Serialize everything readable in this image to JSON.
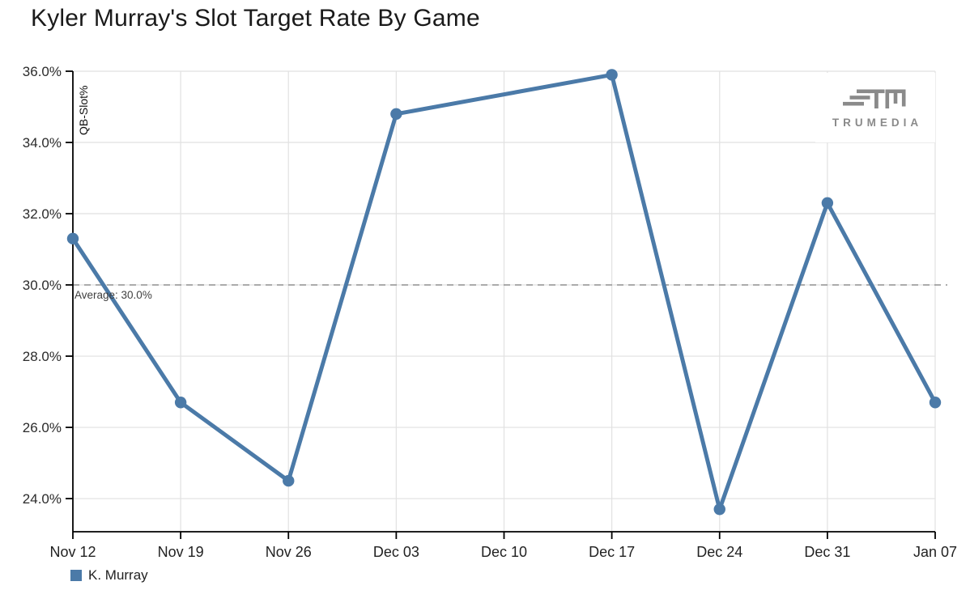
{
  "page": {
    "title": "Kyler Murray's Slot Target Rate By Game"
  },
  "logo": {
    "name": "TRUMEDIA",
    "color": "#8a8a8a"
  },
  "legend": {
    "items": [
      {
        "label": "K. Murray",
        "color": "#4b7aa8"
      }
    ]
  },
  "chart_data": {
    "type": "line",
    "title": "Kyler Murray's Slot Target Rate By Game",
    "xlabel": "",
    "ylabel": "QB-Slot%",
    "categories": [
      "Nov 12",
      "Nov 19",
      "Nov 26",
      "Dec 03",
      "Dec 10",
      "Dec 17",
      "Dec 24",
      "Dec 31",
      "Jan 07"
    ],
    "series": [
      {
        "name": "K. Murray",
        "color": "#4b7aa8",
        "values": [
          31.3,
          26.7,
          24.5,
          34.8,
          null,
          35.9,
          23.7,
          32.3,
          26.7
        ]
      }
    ],
    "missing_note": "no data point at Dec 10; line connects Dec 03 to Dec 17",
    "average": {
      "value": 30.0,
      "label": "Average: 30.0%"
    },
    "y_ticks": [
      36,
      34,
      32,
      30,
      28,
      26,
      24
    ],
    "y_tick_labels": [
      "36.0%",
      "34.0%",
      "32.0%",
      "30.0%",
      "28.0%",
      "26.0%",
      "24.0%"
    ],
    "ylim": [
      23.07,
      36.0
    ],
    "grid": true,
    "grid_color": "#e1e1e1",
    "axis_color": "#000000",
    "average_line_color": "#999999",
    "legend_position": "bottom-left"
  }
}
